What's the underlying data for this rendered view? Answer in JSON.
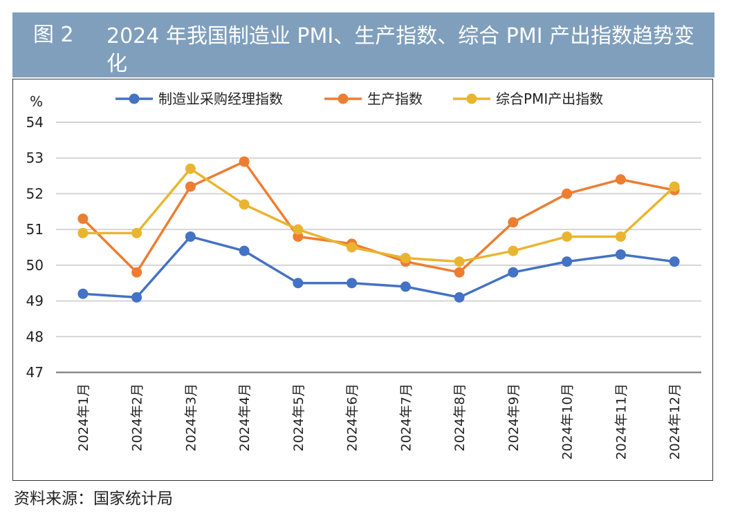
{
  "header": {
    "label": "图 2",
    "title": "2024 年我国制造业 PMI、生产指数、综合 PMI 产出指数趋势变化",
    "background": "#7f9fbd"
  },
  "source": "资料来源：国家统计局",
  "chart_data": {
    "type": "line",
    "title": "2024 年我国制造业 PMI、生产指数、综合 PMI 产出指数趋势变化",
    "ylabel": "%",
    "xlabel": "",
    "ylim": [
      47,
      54
    ],
    "yticks": [
      47,
      48,
      49,
      50,
      51,
      52,
      53,
      54
    ],
    "grid": true,
    "legend_position": "top",
    "categories": [
      "2024年1月",
      "2024年2月",
      "2024年3月",
      "2024年4月",
      "2024年5月",
      "2024年6月",
      "2024年7月",
      "2024年8月",
      "2024年9月",
      "2024年10月",
      "2024年11月",
      "2024年12月"
    ],
    "series": [
      {
        "name": "制造业采购经理指数",
        "color": "#4472c4",
        "values": [
          49.2,
          49.1,
          50.8,
          50.4,
          49.5,
          49.5,
          49.4,
          49.1,
          49.8,
          50.1,
          50.3,
          50.1
        ]
      },
      {
        "name": "生产指数",
        "color": "#ed7d31",
        "values": [
          51.3,
          49.8,
          52.2,
          52.9,
          50.8,
          50.6,
          50.1,
          49.8,
          51.2,
          52.0,
          52.4,
          52.1
        ]
      },
      {
        "name": "综合PMI产出指数",
        "color": "#e9b530",
        "values": [
          50.9,
          50.9,
          52.7,
          51.7,
          51.0,
          50.5,
          50.2,
          50.1,
          50.4,
          50.8,
          50.8,
          52.2
        ]
      }
    ]
  }
}
